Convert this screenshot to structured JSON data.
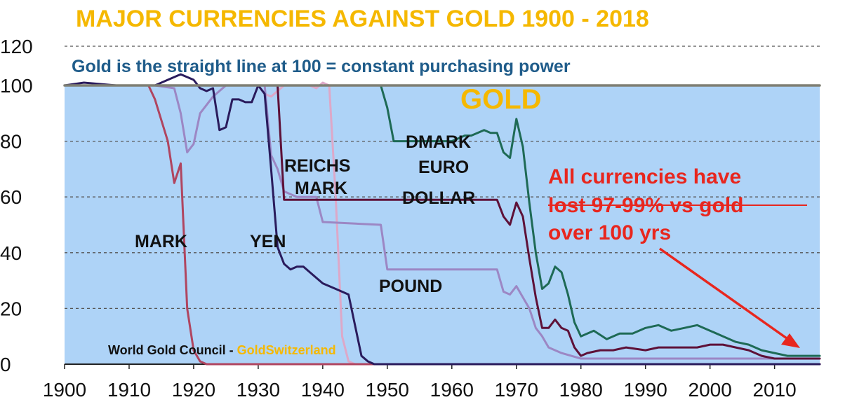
{
  "chart_data": {
    "type": "line",
    "title": "MAJOR CURRENCIES AGAINST GOLD 1900 - 2018",
    "subtitle": "Gold is the straight line at 100 = constant purchasing power",
    "xlim": [
      1900,
      2017
    ],
    "ylim": [
      0,
      120
    ],
    "x_ticks": [
      "1900",
      "1910",
      "1920",
      "1930",
      "1940",
      "1950",
      "1960",
      "1970",
      "1980",
      "1990",
      "2000",
      "2010"
    ],
    "y_ticks": [
      "0",
      "20",
      "40",
      "60",
      "80",
      "100",
      "120"
    ],
    "grid": true,
    "annotation": "All currencies have lost 97-99% vs gold over 100 yrs",
    "source": "World Gold Council - ",
    "source_brand": "GoldSwitzerland",
    "colors": {
      "title": "#F5B800",
      "subtitle": "#1F5C8A",
      "plot_bg": "#AED3F7",
      "gold": "#7E7F74",
      "mark": "#B04560",
      "yen": "#2A1B5C",
      "reichsmark": "#DDA8C8",
      "pound": "#9C87C4",
      "dollar": "#5E1138",
      "dmark_euro": "#1E6A55",
      "annotation": "#E8261E"
    },
    "series": [
      {
        "name": "GOLD",
        "color": "#7E7F74",
        "x": [
          1900,
          2017
        ],
        "y": [
          100,
          100
        ]
      },
      {
        "name": "MARK",
        "color": "#B04560",
        "x": [
          1900,
          1913,
          1914,
          1916,
          1917,
          1918,
          1919,
          1920,
          1921,
          1922,
          1923,
          2017
        ],
        "y": [
          100,
          100,
          95,
          80,
          65,
          72,
          20,
          5,
          1,
          0,
          0,
          0
        ]
      },
      {
        "name": "YEN",
        "color": "#2A1B5C",
        "x": [
          1900,
          1903,
          1908,
          1914,
          1916,
          1918,
          1920,
          1921,
          1922,
          1923,
          1924,
          1925,
          1926,
          1927,
          1928,
          1929,
          1930,
          1931,
          1932,
          1933,
          1934,
          1935,
          1936,
          1937,
          1938,
          1940,
          1942,
          1944,
          1945,
          1946,
          1947,
          1948,
          2017
        ],
        "y": [
          100,
          101,
          100,
          100,
          102,
          104,
          102,
          99,
          98,
          99,
          84,
          85,
          95,
          95,
          94,
          94,
          100,
          97,
          70,
          42,
          36,
          34,
          35,
          35,
          33,
          29,
          27,
          25,
          14,
          3,
          1,
          0,
          0
        ]
      },
      {
        "name": "REICHS MARK",
        "color": "#DDA8C8",
        "x": [
          1900,
          1930,
          1931,
          1932,
          1933,
          1934,
          1938,
          1939,
          1940,
          1941,
          1942,
          1943,
          1944,
          1945,
          2017
        ],
        "y": [
          100,
          100,
          97,
          96,
          98,
          100,
          100,
          99,
          101,
          100,
          60,
          10,
          1,
          0,
          0
        ]
      },
      {
        "name": "POUND",
        "color": "#9C87C4",
        "x": [
          1900,
          1914,
          1917,
          1918,
          1919,
          1920,
          1921,
          1923,
          1925,
          1926,
          1931,
          1932,
          1933,
          1934,
          1936,
          1939,
          1940,
          1949,
          1950,
          1951,
          1967,
          1968,
          1969,
          1970,
          1971,
          1972,
          1973,
          1974,
          1975,
          1976,
          1977,
          1980,
          2017
        ],
        "y": [
          100,
          100,
          99,
          90,
          76,
          79,
          90,
          96,
          100,
          100,
          100,
          75,
          70,
          62,
          60,
          60,
          51,
          50,
          34,
          34,
          34,
          26,
          25,
          28,
          24,
          20,
          13,
          10,
          6,
          5,
          4,
          2,
          2
        ]
      },
      {
        "name": "DOLLAR",
        "color": "#5E1138",
        "x": [
          1900,
          1933,
          1934,
          1967,
          1968,
          1969,
          1970,
          1971,
          1972,
          1973,
          1974,
          1975,
          1976,
          1977,
          1978,
          1979,
          1980,
          1981,
          1983,
          1985,
          1987,
          1990,
          1992,
          1995,
          1998,
          2000,
          2002,
          2004,
          2006,
          2008,
          2010,
          2012,
          2017
        ],
        "y": [
          100,
          100,
          59,
          59,
          53,
          50,
          58,
          53,
          38,
          24,
          13,
          13,
          16,
          13,
          12,
          6,
          3,
          4,
          5,
          5,
          6,
          5,
          6,
          6,
          6,
          7,
          7,
          6,
          5,
          3,
          2,
          2,
          2
        ]
      },
      {
        "name": "DMARK EURO",
        "color": "#1E6A55",
        "x": [
          1949,
          1950,
          1951,
          1960,
          1961,
          1962,
          1963,
          1964,
          1965,
          1966,
          1967,
          1968,
          1969,
          1970,
          1971,
          1972,
          1973,
          1974,
          1975,
          1976,
          1977,
          1978,
          1979,
          1980,
          1982,
          1984,
          1986,
          1988,
          1990,
          1992,
          1994,
          1996,
          1998,
          2000,
          2002,
          2004,
          2006,
          2008,
          2010,
          2012,
          2014,
          2017
        ],
        "y": [
          100,
          92,
          80,
          80,
          81,
          82,
          82,
          83,
          84,
          83,
          83,
          76,
          74,
          88,
          78,
          58,
          40,
          27,
          29,
          35,
          33,
          25,
          15,
          10,
          12,
          9,
          11,
          11,
          13,
          14,
          12,
          13,
          14,
          12,
          10,
          8,
          7,
          5,
          4,
          3,
          3,
          3
        ]
      }
    ],
    "labels": {
      "gold": "GOLD",
      "mark": "MARK",
      "yen": "YEN",
      "reichs": "REICHS",
      "mark2": "MARK",
      "pound": "POUND",
      "dollar": "DOLLAR",
      "dmark": "DMARK",
      "euro": "EURO",
      "annotation_line1": "All currencies have",
      "annotation_line2": "lost 97-99% vs gold",
      "annotation_line3": "over 100 yrs"
    }
  }
}
